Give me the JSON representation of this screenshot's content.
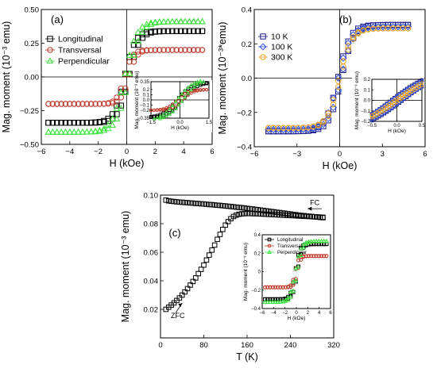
{
  "colors": {
    "Longitudinal": "#000000",
    "Transversal": "#c0392b",
    "Perpendicular": "#3ee23e",
    "10 K": "#1a1a8c",
    "100 K": "#3050e0",
    "300 K": "#e8a020",
    "zero_line": "#555555"
  },
  "chart_data": [
    {
      "id": "a",
      "type": "scatter",
      "panel_label": "(a)",
      "xlabel": "H (kOe)",
      "ylabel": "Mag. moment (10⁻³ emu)",
      "xlim": [
        -6,
        6
      ],
      "ylim": [
        -0.5,
        0.5
      ],
      "xticks": [
        -6,
        -4,
        -2,
        0,
        2,
        4,
        6
      ],
      "yticks": [
        -0.5,
        -0.25,
        0,
        0.25,
        0.5
      ],
      "ytick_labels": [
        "-0.50",
        "-0.25",
        "0.00",
        "0.25",
        "0.50"
      ],
      "legend_position": "top-left",
      "series": [
        {
          "name": "Longitudinal",
          "marker": "square",
          "Ms": 0.34,
          "Hc": 0.15,
          "H0": 0.75
        },
        {
          "name": "Transversal",
          "marker": "circle",
          "Ms": 0.2,
          "Hc": 0.15,
          "H0": 0.55
        },
        {
          "name": "Perpendicular",
          "marker": "triangle",
          "Ms": 0.41,
          "Hc": 0.15,
          "H0": 0.85
        }
      ],
      "inset": {
        "xlabel": "H (kOe)",
        "ylabel": "Mag. moment (10⁻³ emu)",
        "xlim": [
          -1.5,
          1.5
        ],
        "ylim": [
          -0.35,
          0.35
        ],
        "xticks": [
          -1.5,
          0,
          1.5
        ],
        "xtick_labels": [
          "-1.5",
          "0.0",
          "1.5"
        ],
        "yticks": [
          -0.35,
          -0.2,
          -0.1,
          0,
          0.1,
          0.2,
          0.35
        ],
        "ytick_labels": [
          "-0.35",
          "-0.2",
          "-0.1",
          "0.0",
          "0.1",
          "0.2",
          "0.35"
        ]
      }
    },
    {
      "id": "b",
      "type": "scatter",
      "panel_label": "(b)",
      "xlabel": "H (kOe)",
      "ylabel": "Mag. moment (10⁻³*emu)",
      "xlim": [
        -6,
        6
      ],
      "ylim": [
        -0.4,
        0.4
      ],
      "xticks": [
        -6,
        -3,
        0,
        3,
        6
      ],
      "yticks": [
        -0.4,
        -0.2,
        0,
        0.2,
        0.4
      ],
      "ytick_labels": [
        "-0.4",
        "-0.2",
        "0.0",
        "0.2",
        "0.4"
      ],
      "legend_position": "top-left",
      "series": [
        {
          "name": "10 K",
          "marker": "square",
          "Ms": 0.31,
          "Hc": 0.12,
          "H0": 0.85
        },
        {
          "name": "100 K",
          "marker": "diamond",
          "Ms": 0.3,
          "Hc": 0.1,
          "H0": 0.85
        },
        {
          "name": "300 K",
          "marker": "circle",
          "Ms": 0.29,
          "Hc": 0.05,
          "H0": 0.85
        }
      ],
      "inset": {
        "xlabel": "H (kOe)",
        "ylabel": "Mag. moment (10⁻³ emu)",
        "xlim": [
          -0.5,
          0.5
        ],
        "ylim": [
          -0.2,
          0.2
        ],
        "xticks": [
          -0.5,
          0,
          0.5
        ],
        "xtick_labels": [
          "-0.5",
          "0.0",
          "0.5"
        ],
        "yticks": [
          -0.2,
          -0.1,
          0,
          0.1,
          0.2
        ],
        "ytick_labels": [
          "-0.2",
          "-0.1",
          "0.0",
          "0.1",
          "0.2"
        ]
      }
    },
    {
      "id": "c",
      "type": "scatter",
      "panel_label": "(c)",
      "xlabel": "T (K)",
      "ylabel": "Mag. moment (10⁻³ emu)",
      "xlim": [
        0,
        320
      ],
      "ylim": [
        0,
        0.1
      ],
      "xticks": [
        0,
        80,
        160,
        240,
        320
      ],
      "yticks": [
        0.02,
        0.04,
        0.06,
        0.08,
        0.1
      ],
      "ytick_labels": [
        "0.02",
        "0.04",
        "0.06",
        "0.08",
        "0.10"
      ],
      "annotations": [
        {
          "text": "FC",
          "x": 285,
          "y": 0.093,
          "arrow_to_x": 272,
          "arrow_from_x": 298,
          "arrow_y": 0.0905
        },
        {
          "text": "ZFC",
          "x": 32,
          "y": 0.014,
          "arrow_from": [
            28,
            0.012
          ],
          "arrow_to": [
            40,
            0.021
          ]
        }
      ],
      "series": [
        {
          "name": "FC",
          "marker": "square",
          "x": [
            10,
            15,
            20,
            25,
            30,
            35,
            40,
            45,
            50,
            55,
            60,
            65,
            70,
            75,
            80,
            85,
            90,
            95,
            100,
            105,
            110,
            115,
            120,
            125,
            130,
            135,
            140,
            145,
            150,
            155,
            160,
            165,
            170,
            175,
            180,
            185,
            190,
            195,
            200,
            205,
            210,
            215,
            220,
            225,
            230,
            235,
            240,
            245,
            250,
            255,
            260,
            265,
            270,
            275,
            280,
            285,
            290,
            295,
            300
          ],
          "y": [
            0.0965,
            0.096,
            0.0957,
            0.0955,
            0.0953,
            0.0951,
            0.095,
            0.0948,
            0.0947,
            0.0945,
            0.0944,
            0.0942,
            0.0941,
            0.0939,
            0.0938,
            0.0936,
            0.0934,
            0.0933,
            0.0931,
            0.0929,
            0.0928,
            0.0926,
            0.0924,
            0.0922,
            0.092,
            0.0918,
            0.0916,
            0.0914,
            0.0912,
            0.091,
            0.0907,
            0.0905,
            0.0903,
            0.09,
            0.0898,
            0.0895,
            0.0893,
            0.089,
            0.0888,
            0.0885,
            0.0883,
            0.088,
            0.0878,
            0.0875,
            0.0873,
            0.087,
            0.0868,
            0.0865,
            0.0863,
            0.086,
            0.0858,
            0.0856,
            0.0854,
            0.0852,
            0.085,
            0.0848,
            0.0846,
            0.0844,
            0.0842
          ]
        },
        {
          "name": "ZFC",
          "marker": "square",
          "x": [
            10,
            15,
            20,
            25,
            30,
            35,
            40,
            45,
            50,
            55,
            60,
            65,
            70,
            75,
            80,
            85,
            90,
            95,
            100,
            105,
            110,
            115,
            120,
            125,
            130,
            135,
            140,
            145,
            150,
            155,
            160,
            165,
            170,
            175,
            180,
            185,
            190,
            195,
            200,
            205,
            210,
            215,
            220,
            225,
            230,
            235,
            240,
            245,
            250,
            255,
            260,
            265,
            270,
            275,
            280,
            285,
            290,
            295,
            300
          ],
          "y": [
            0.02,
            0.0215,
            0.023,
            0.0245,
            0.0262,
            0.028,
            0.03,
            0.0322,
            0.0345,
            0.037,
            0.0395,
            0.042,
            0.045,
            0.048,
            0.051,
            0.0545,
            0.058,
            0.0615,
            0.065,
            0.069,
            0.0725,
            0.076,
            0.079,
            0.0815,
            0.0835,
            0.085,
            0.086,
            0.0866,
            0.0869,
            0.087,
            0.0871,
            0.0871,
            0.087,
            0.087,
            0.0869,
            0.0868,
            0.0867,
            0.0866,
            0.0865,
            0.0864,
            0.0863,
            0.0862,
            0.0861,
            0.086,
            0.0859,
            0.0858,
            0.0857,
            0.0856,
            0.0855,
            0.0854,
            0.0853,
            0.0852,
            0.0851,
            0.085,
            0.0849,
            0.0848,
            0.0847,
            0.0846,
            0.0845
          ]
        }
      ],
      "inset": {
        "xlabel": "H (kOe)",
        "ylabel": "Mag. moment (10⁻³ emu)",
        "xlim": [
          -6,
          6
        ],
        "ylim": [
          -0.4,
          0.4
        ],
        "xticks": [
          -6,
          -4,
          -2,
          0,
          2,
          4,
          6
        ],
        "yticks": [
          -0.4,
          -0.2,
          0,
          0.2,
          0.4
        ],
        "legend_position": "top-left",
        "series": [
          {
            "name": "Longitudinal",
            "marker": "square",
            "Ms": 0.3,
            "Hc": 0.2,
            "H0": 0.8
          },
          {
            "name": "Transversal",
            "marker": "circle",
            "Ms": 0.17,
            "Hc": 0.2,
            "H0": 0.6
          },
          {
            "name": "Perpendicular",
            "marker": "triangle",
            "Ms": 0.33,
            "Hc": 0.2,
            "H0": 1.0
          }
        ]
      }
    }
  ]
}
